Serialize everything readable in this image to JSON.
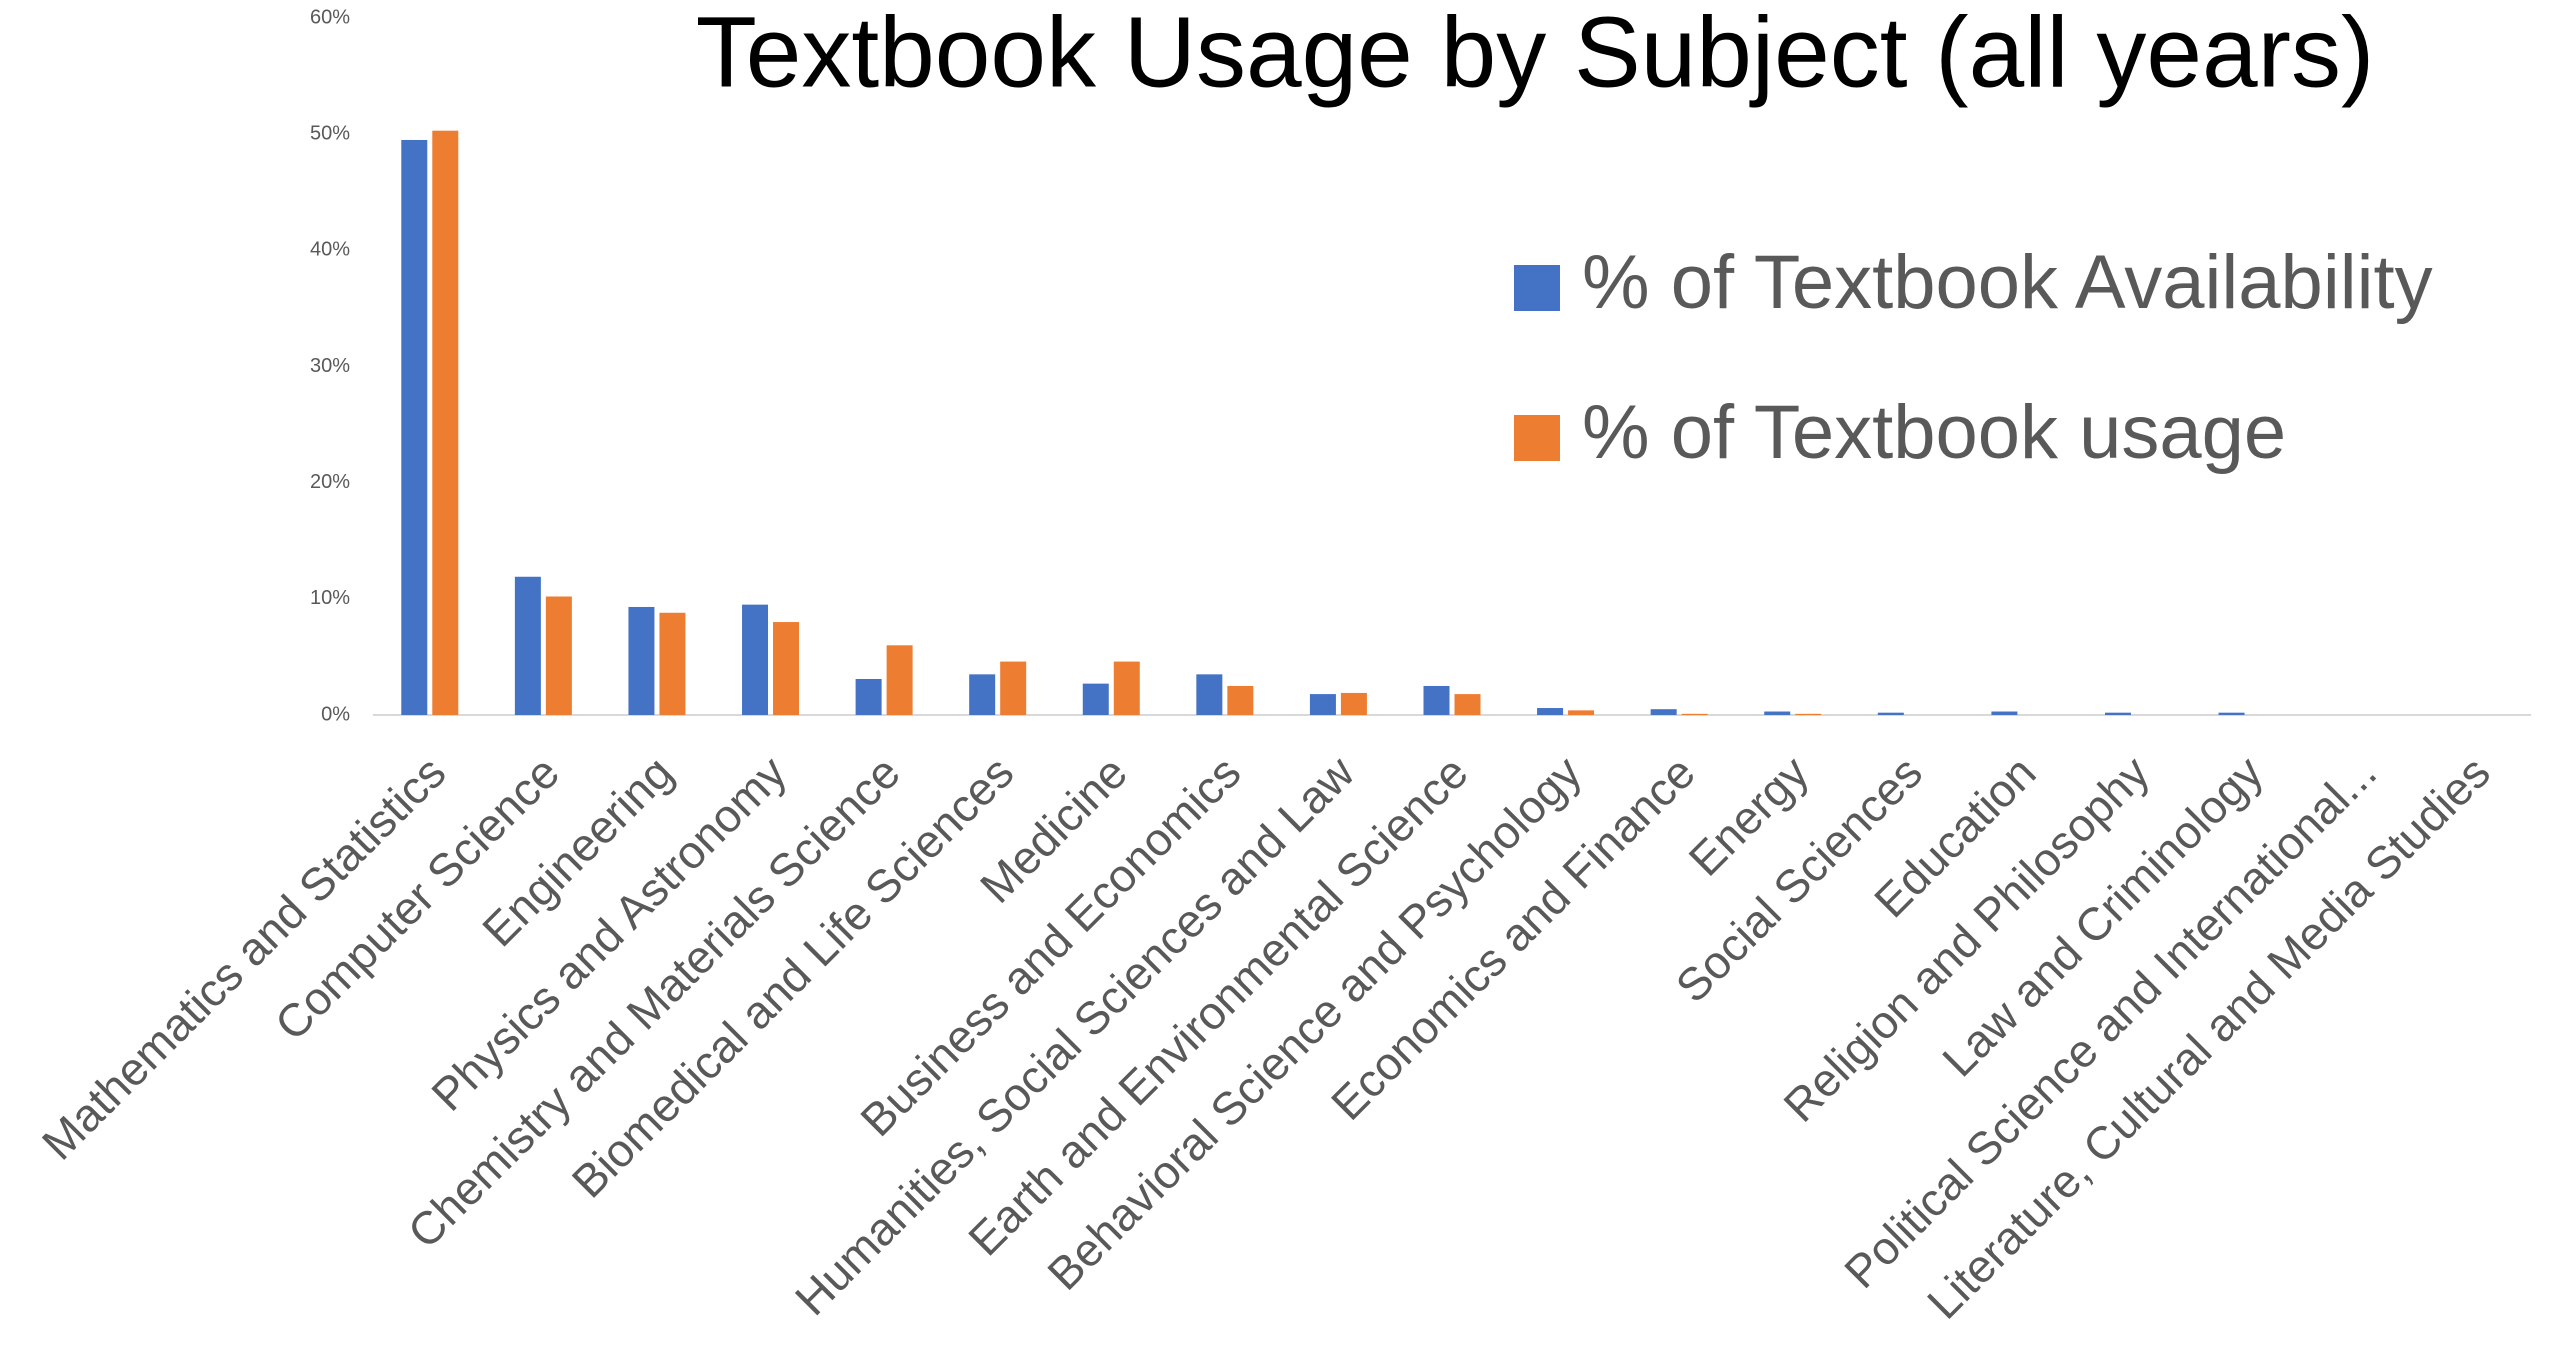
{
  "chart_data": {
    "type": "bar",
    "title": "Textbook Usage by Subject (all years)",
    "categories": [
      "Mathematics and Statistics",
      "Computer Science",
      "Engineering",
      "Physics and Astronomy",
      "Chemistry and Materials Science",
      "Biomedical and Life Sciences",
      "Medicine",
      "Business and Economics",
      "Humanities, Social Sciences and Law",
      "Earth and Environmental Science",
      "Behavioral Science and Psychology",
      "Economics and Finance",
      "Energy",
      "Social Sciences",
      "Education",
      "Religion and Philosophy",
      "Law and Criminology",
      "Political Science and International...",
      "Literature, Cultural and Media Studies"
    ],
    "series": [
      {
        "name": "% of Textbook Availability",
        "color": "#4472c4",
        "values": [
          49.5,
          11.9,
          9.3,
          9.5,
          3.1,
          3.5,
          2.7,
          3.5,
          1.8,
          2.5,
          0.6,
          0.5,
          0.3,
          0.2,
          0.3,
          0.2,
          0.2,
          0,
          0
        ]
      },
      {
        "name": "% of Textbook usage",
        "color": "#ed7d31",
        "values": [
          50.3,
          10.2,
          8.8,
          8.0,
          6.0,
          4.6,
          4.6,
          2.5,
          1.9,
          1.8,
          0.4,
          0.1,
          0.1,
          0,
          0,
          0,
          0,
          0,
          0
        ]
      }
    ],
    "ylim": [
      0,
      60
    ],
    "yticks": [
      {
        "value": 0,
        "label": "0%"
      },
      {
        "value": 10,
        "label": "10%"
      },
      {
        "value": 20,
        "label": "20%"
      },
      {
        "value": 30,
        "label": "30%"
      },
      {
        "value": 40,
        "label": "40%"
      },
      {
        "value": 50,
        "label": "50%"
      },
      {
        "value": 60,
        "label": "60%"
      }
    ],
    "grid": false,
    "legend": "upper right"
  }
}
